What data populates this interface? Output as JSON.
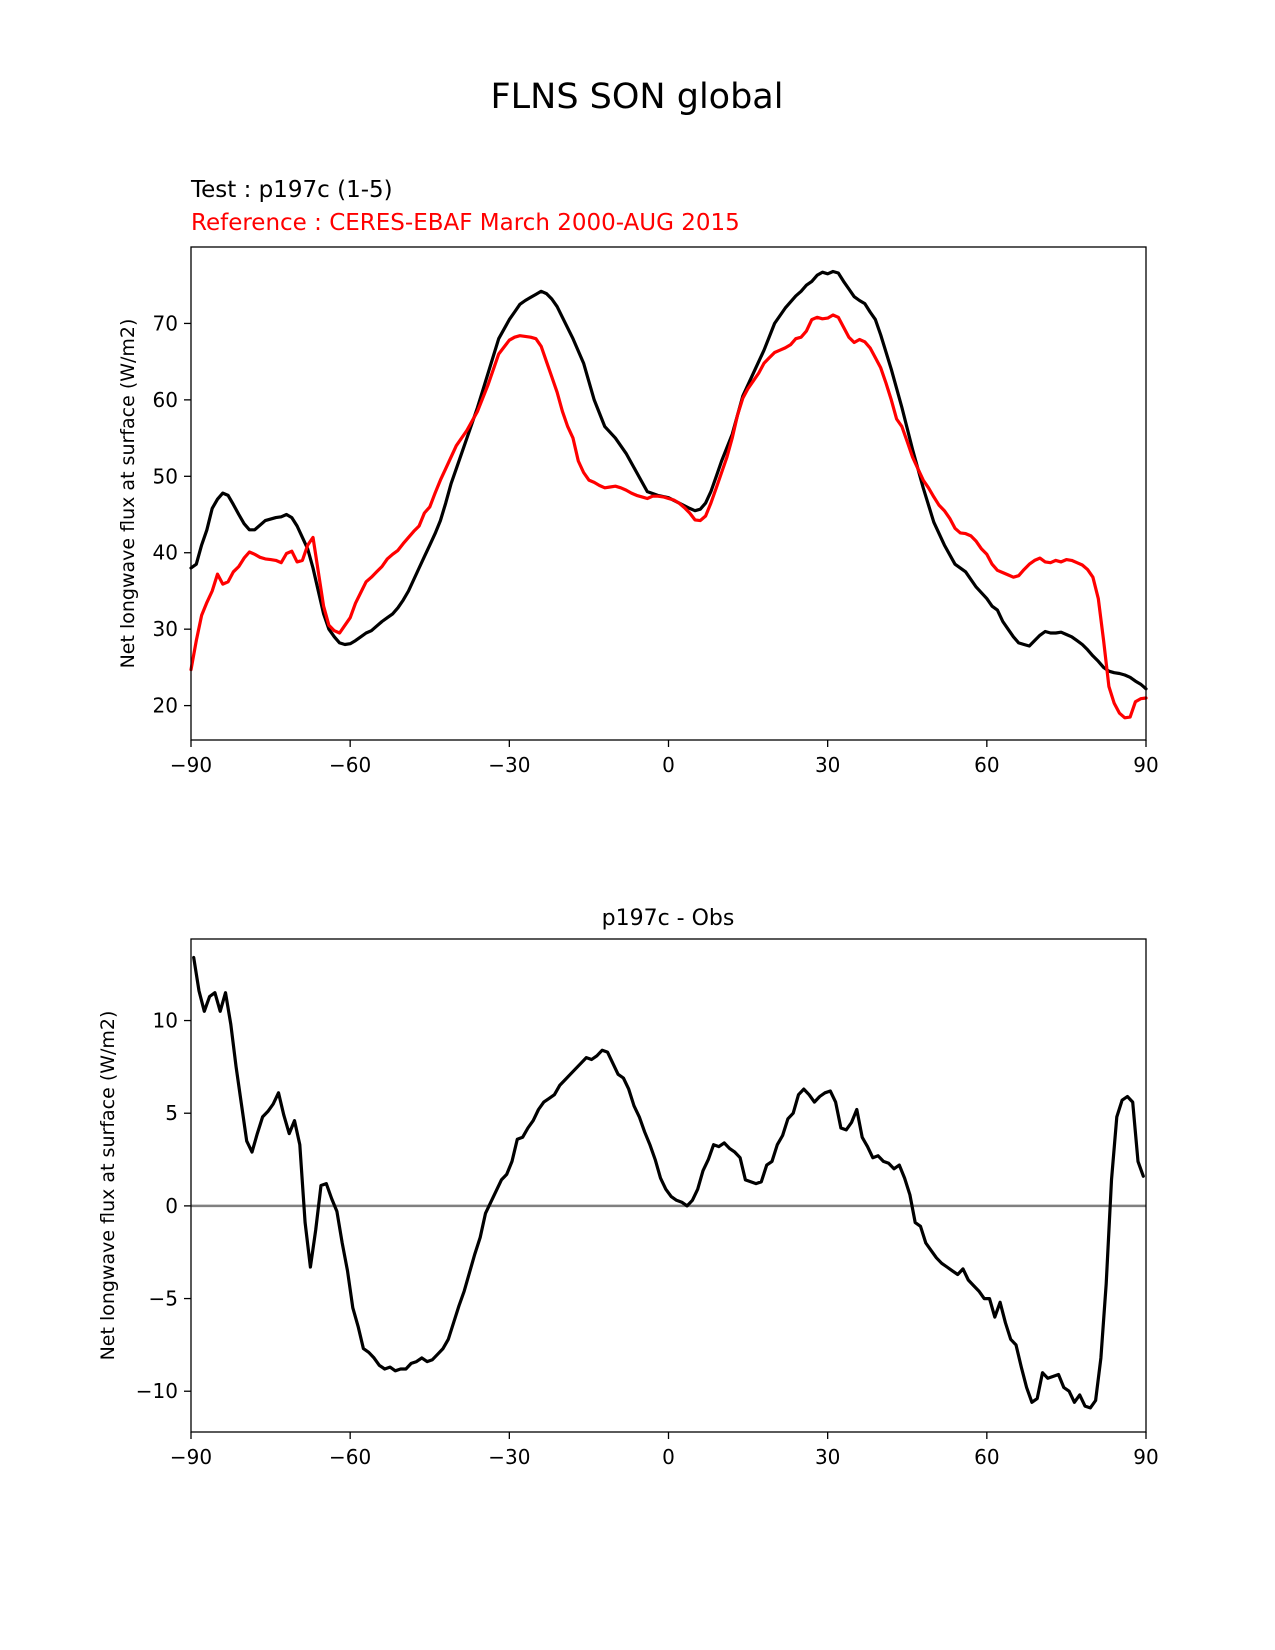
{
  "figure": {
    "suptitle": "FLNS SON global"
  },
  "chart_data": [
    {
      "type": "line",
      "test_title": "Test : p197c (1-5)",
      "reference_title": "Reference : CERES-EBAF March 2000-AUG 2015",
      "ylabel": "Net longwave flux at surface (W/m2)",
      "xlabel": "",
      "xlim": [
        -90,
        90
      ],
      "ylim": [
        15.5,
        80
      ],
      "xticks": [
        -90,
        -60,
        -30,
        0,
        30,
        60,
        90
      ],
      "xtick_labels": [
        "−90",
        "−60",
        "−30",
        "0",
        "30",
        "60",
        "90"
      ],
      "yticks": [
        20,
        30,
        40,
        50,
        60,
        70
      ],
      "ytick_labels": [
        "20",
        "30",
        "40",
        "50",
        "60",
        "70"
      ],
      "grid": false,
      "series": [
        {
          "color": "#000000",
          "x": [
            -90,
            -89,
            -88,
            -87,
            -86,
            -85,
            -84,
            -83,
            -82,
            -81,
            -80,
            -79,
            -78,
            -77,
            -76,
            -75,
            -74,
            -73,
            -72,
            -71,
            -70,
            -69,
            -68,
            -67,
            -66,
            -65,
            -64,
            -63,
            -62,
            -61,
            -60,
            -59,
            -58,
            -57,
            -56,
            -55,
            -54,
            -53,
            -52,
            -51,
            -50,
            -49,
            -48,
            -47,
            -46,
            -45,
            -44,
            -43,
            -42,
            -41,
            -40,
            -38,
            -36,
            -34,
            -32,
            -30,
            -29,
            -28,
            -27,
            -26,
            -25,
            -24,
            -23,
            -22,
            -21,
            -20,
            -18,
            -16,
            -14,
            -12,
            -10,
            -8,
            -6,
            -4,
            -2,
            0,
            2,
            4,
            5,
            6,
            7,
            8,
            9,
            10,
            12,
            14,
            16,
            18,
            20,
            22,
            24,
            25,
            26,
            27,
            28,
            29,
            30,
            31,
            32,
            33,
            34,
            35,
            36,
            37,
            38,
            39,
            40,
            42,
            44,
            46,
            48,
            50,
            52,
            54,
            56,
            58,
            60,
            61,
            62,
            63,
            64,
            65,
            66,
            67,
            68,
            69,
            70,
            71,
            72,
            73,
            74,
            75,
            76,
            77,
            78,
            79,
            80,
            81,
            82,
            83,
            84,
            85,
            86,
            87,
            88,
            89,
            90
          ],
          "y": [
            38,
            38.5,
            41,
            43,
            45.8,
            47,
            47.8,
            47.5,
            46.3,
            45,
            43.8,
            43,
            43,
            43.6,
            44.2,
            44.4,
            44.6,
            44.7,
            45,
            44.6,
            43.5,
            42,
            40.5,
            38,
            35,
            32,
            30,
            29,
            28.2,
            28,
            28.1,
            28.5,
            29,
            29.5,
            29.8,
            30.4,
            31,
            31.5,
            32,
            32.8,
            33.8,
            35,
            36.5,
            38,
            39.5,
            41,
            42.5,
            44.2,
            46.5,
            49,
            51,
            55,
            59,
            63.5,
            68,
            70.5,
            71.5,
            72.5,
            73,
            73.4,
            73.8,
            74.2,
            73.9,
            73.2,
            72.2,
            70.8,
            68,
            64.8,
            60,
            56.5,
            55,
            53,
            50.5,
            48,
            47.5,
            47.2,
            46.5,
            45.8,
            45.5,
            45.7,
            46.5,
            48,
            50,
            52,
            55.5,
            60.5,
            63.5,
            66.5,
            70,
            72,
            73.6,
            74.2,
            75,
            75.5,
            76.3,
            76.7,
            76.5,
            76.8,
            76.6,
            75.5,
            74.5,
            73.5,
            73,
            72.6,
            71.5,
            70.5,
            68.5,
            64,
            59,
            53.5,
            48.5,
            44,
            41,
            38.5,
            37.5,
            35.5,
            34,
            33,
            32.5,
            31,
            30,
            29,
            28.2,
            28,
            27.8,
            28.5,
            29.2,
            29.7,
            29.5,
            29.5,
            29.6,
            29.3,
            29,
            28.5,
            28,
            27.3,
            26.5,
            25.8,
            25,
            24.5,
            24.3,
            24.2,
            24,
            23.7,
            23.2,
            22.8,
            22.2
          ]
        },
        {
          "color": "#ff0000",
          "x": [
            -90,
            -89,
            -88,
            -87,
            -86,
            -85,
            -84,
            -83,
            -82,
            -81,
            -80,
            -79,
            -78,
            -77,
            -76,
            -75,
            -74,
            -73,
            -72,
            -71,
            -70,
            -69,
            -68,
            -67,
            -66,
            -65,
            -64,
            -63,
            -62,
            -61,
            -60,
            -59,
            -58,
            -57,
            -56,
            -55,
            -54,
            -53,
            -52,
            -51,
            -50,
            -49,
            -48,
            -47,
            -46,
            -45,
            -44,
            -43,
            -42,
            -41,
            -40,
            -38,
            -36,
            -34,
            -32,
            -30,
            -29,
            -28,
            -27,
            -26,
            -25,
            -24,
            -23,
            -22,
            -21,
            -20,
            -19,
            -18,
            -17,
            -16,
            -15,
            -14,
            -13,
            -12,
            -11,
            -10,
            -9,
            -8,
            -7,
            -6,
            -5,
            -4,
            -3,
            -2,
            -1,
            0,
            1,
            2,
            3,
            4,
            5,
            6,
            7,
            8,
            9,
            10,
            11,
            12,
            13,
            14,
            15,
            16,
            17,
            18,
            19,
            20,
            21,
            22,
            23,
            24,
            25,
            26,
            27,
            28,
            29,
            30,
            31,
            32,
            33,
            34,
            35,
            36,
            37,
            38,
            39,
            40,
            41,
            42,
            43,
            44,
            45,
            46,
            47,
            48,
            49,
            50,
            51,
            52,
            53,
            54,
            55,
            56,
            57,
            58,
            59,
            60,
            61,
            62,
            63,
            64,
            65,
            66,
            67,
            68,
            69,
            70,
            71,
            72,
            73,
            74,
            75,
            76,
            77,
            78,
            79,
            80,
            81,
            82,
            83,
            84,
            85,
            86,
            87,
            88,
            89,
            90
          ],
          "y": [
            24.7,
            28.5,
            31.8,
            33.5,
            35,
            37.2,
            35.9,
            36.2,
            37.5,
            38.2,
            39.3,
            40.1,
            39.8,
            39.4,
            39.2,
            39.1,
            39,
            38.7,
            39.9,
            40.2,
            38.8,
            39.0,
            41.0,
            42.0,
            37.5,
            33.0,
            30.5,
            29.8,
            29.5,
            30.5,
            31.5,
            33.4,
            34.8,
            36.2,
            36.8,
            37.5,
            38.2,
            39.2,
            39.8,
            40.3,
            41.2,
            42,
            42.8,
            43.5,
            45.2,
            46.0,
            47.8,
            49.5,
            51,
            52.5,
            54,
            56,
            58.5,
            62,
            66,
            67.8,
            68.2,
            68.4,
            68.3,
            68.2,
            68.0,
            67.0,
            65.0,
            63.0,
            61.0,
            58.5,
            56.5,
            55.0,
            52.0,
            50.5,
            49.5,
            49.2,
            48.8,
            48.5,
            48.6,
            48.7,
            48.5,
            48.2,
            47.8,
            47.5,
            47.3,
            47.1,
            47.4,
            47.4,
            47.3,
            47.1,
            46.9,
            46.5,
            45.9,
            45.2,
            44.3,
            44.2,
            44.8,
            46.5,
            48.5,
            50.5,
            52.5,
            55.0,
            58.0,
            60.2,
            61.5,
            62.5,
            63.5,
            64.8,
            65.5,
            66.2,
            66.5,
            66.8,
            67.2,
            68.0,
            68.2,
            69.0,
            70.5,
            70.8,
            70.6,
            70.7,
            71.1,
            70.8,
            69.5,
            68.2,
            67.5,
            67.9,
            67.6,
            66.8,
            65.5,
            64.2,
            62.2,
            60.0,
            57.5,
            56.5,
            54.5,
            52.5,
            51.0,
            49.5,
            48.5,
            47.3,
            46.2,
            45.5,
            44.5,
            43.2,
            42.6,
            42.5,
            42.2,
            41.5,
            40.5,
            39.8,
            38.5,
            37.7,
            37.4,
            37.1,
            36.8,
            37.0,
            37.8,
            38.5,
            39.0,
            39.3,
            38.8,
            38.7,
            39.0,
            38.8,
            39.1,
            39.0,
            38.7,
            38.4,
            37.8,
            36.8,
            34.0,
            28.5,
            22.5,
            20.3,
            19.0,
            18.4,
            18.5,
            20.5,
            20.9,
            21.0
          ]
        }
      ]
    },
    {
      "type": "line",
      "title": "p197c - Obs",
      "ylabel": "Net longwave flux at surface (W/m2)",
      "xlabel": "",
      "xlim": [
        -90,
        90
      ],
      "ylim": [
        -12.2,
        14.4
      ],
      "xticks": [
        -90,
        -60,
        -30,
        0,
        30,
        60,
        90
      ],
      "xtick_labels": [
        "−90",
        "−60",
        "−30",
        "0",
        "30",
        "60",
        "90"
      ],
      "yticks": [
        -10,
        -5,
        0,
        5,
        10
      ],
      "ytick_labels": [
        "−10",
        "−5",
        "0",
        "5",
        "10"
      ],
      "zero_line": 0,
      "zero_line_color": "#808080",
      "grid": false,
      "series": [
        {
          "color": "#000000",
          "x": [
            -89.5,
            -88.5,
            -87.5,
            -86.5,
            -85.5,
            -84.5,
            -83.5,
            -82.5,
            -81.5,
            -80.5,
            -79.5,
            -78.5,
            -77.5,
            -76.5,
            -75.5,
            -74.5,
            -73.5,
            -72.5,
            -71.5,
            -70.5,
            -69.5,
            -68.5,
            -67.5,
            -66.5,
            -65.5,
            -64.5,
            -63.5,
            -62.5,
            -61.5,
            -60.5,
            -59.5,
            -58.5,
            -57.5,
            -56.5,
            -55.5,
            -54.5,
            -53.5,
            -52.5,
            -51.5,
            -50.5,
            -49.5,
            -48.5,
            -47.5,
            -46.5,
            -45.5,
            -44.5,
            -43.5,
            -42.5,
            -41.5,
            -40.5,
            -39.5,
            -38.5,
            -37.5,
            -36.5,
            -35.5,
            -34.5,
            -33.5,
            -32.5,
            -31.5,
            -30.5,
            -29.5,
            -28.5,
            -27.5,
            -26.5,
            -25.5,
            -24.5,
            -23.5,
            -22.5,
            -21.5,
            -20.5,
            -19.5,
            -18.5,
            -17.5,
            -16.5,
            -15.5,
            -14.5,
            -13.5,
            -12.5,
            -11.5,
            -10.5,
            -9.5,
            -8.5,
            -7.5,
            -6.5,
            -5.5,
            -4.5,
            -3.5,
            -2.5,
            -1.5,
            -0.5,
            0.5,
            1.5,
            2.5,
            3.5,
            4.5,
            5.5,
            6.5,
            7.5,
            8.5,
            9.5,
            10.5,
            11.5,
            12.5,
            13.5,
            14.5,
            15.5,
            16.5,
            17.5,
            18.5,
            19.5,
            20.5,
            21.5,
            22.5,
            23.5,
            24.5,
            25.5,
            26.5,
            27.5,
            28.5,
            29.5,
            30.5,
            31.5,
            32.5,
            33.5,
            34.5,
            35.5,
            36.5,
            37.5,
            38.5,
            39.5,
            40.5,
            41.5,
            42.5,
            43.5,
            44.5,
            45.5,
            46.5,
            47.5,
            48.5,
            49.5,
            50.5,
            51.5,
            52.5,
            53.5,
            54.5,
            55.5,
            56.5,
            57.5,
            58.5,
            59.5,
            60.5,
            61.5,
            62.5,
            63.5,
            64.5,
            65.5,
            66.5,
            67.5,
            68.5,
            69.5,
            70.5,
            71.5,
            72.5,
            73.5,
            74.5,
            75.5,
            76.5,
            77.5,
            78.5,
            79.5,
            80.5,
            81.5,
            82.5,
            83.5,
            84.5,
            85.5,
            86.5,
            87.5,
            88.5,
            89.5
          ],
          "y": [
            13.4,
            11.6,
            10.5,
            11.3,
            11.5,
            10.5,
            11.5,
            9.8,
            7.5,
            5.5,
            3.5,
            2.9,
            3.9,
            4.8,
            5.1,
            5.5,
            6.1,
            4.9,
            3.9,
            4.6,
            3.3,
            -0.9,
            -3.3,
            -1.3,
            1.1,
            1.2,
            0.4,
            -0.3,
            -2.0,
            -3.5,
            -5.5,
            -6.5,
            -7.7,
            -7.9,
            -8.2,
            -8.6,
            -8.8,
            -8.7,
            -8.9,
            -8.8,
            -8.8,
            -8.5,
            -8.4,
            -8.2,
            -8.4,
            -8.3,
            -8.0,
            -7.7,
            -7.2,
            -6.3,
            -5.4,
            -4.6,
            -3.6,
            -2.6,
            -1.7,
            -0.4,
            0.2,
            0.8,
            1.4,
            1.7,
            2.4,
            3.6,
            3.7,
            4.2,
            4.6,
            5.2,
            5.6,
            5.8,
            6.0,
            6.5,
            6.8,
            7.1,
            7.4,
            7.7,
            8.0,
            7.9,
            8.1,
            8.4,
            8.3,
            7.7,
            7.1,
            6.9,
            6.3,
            5.4,
            4.8,
            4.0,
            3.3,
            2.5,
            1.5,
            0.9,
            0.5,
            0.3,
            0.2,
            0.0,
            0.3,
            0.9,
            1.9,
            2.5,
            3.3,
            3.2,
            3.4,
            3.1,
            2.9,
            2.6,
            1.4,
            1.3,
            1.2,
            1.3,
            2.2,
            2.4,
            3.3,
            3.8,
            4.7,
            5.0,
            6.0,
            6.3,
            6.0,
            5.6,
            5.9,
            6.1,
            6.2,
            5.6,
            4.2,
            4.1,
            4.5,
            5.2,
            3.7,
            3.2,
            2.6,
            2.7,
            2.4,
            2.3,
            2.0,
            2.2,
            1.5,
            0.6,
            -0.9,
            -1.1,
            -2.0,
            -2.4,
            -2.8,
            -3.1,
            -3.3,
            -3.5,
            -3.7,
            -3.4,
            -4.0,
            -4.3,
            -4.6,
            -5.0,
            -5.0,
            -6.0,
            -5.2,
            -6.3,
            -7.2,
            -7.5,
            -8.7,
            -9.8,
            -10.6,
            -10.4,
            -9.0,
            -9.3,
            -9.2,
            -9.1,
            -9.8,
            -10.0,
            -10.6,
            -10.2,
            -10.8,
            -10.9,
            -10.5,
            -8.2,
            -4.2,
            1.4,
            4.8,
            5.7,
            5.9,
            5.6,
            2.4,
            1.6
          ]
        }
      ]
    }
  ]
}
